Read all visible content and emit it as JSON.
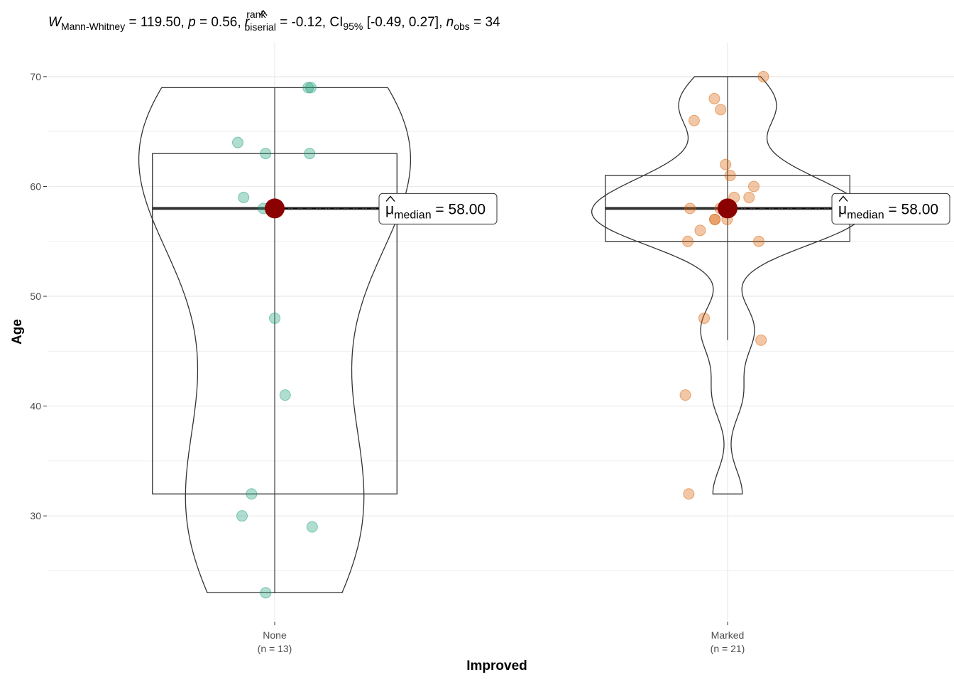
{
  "chart_data": {
    "type": "violin-box",
    "subtitle": {
      "stat_symbol": "W",
      "stat_sub": "Mann-Whitney",
      "stat_value": " = 119.50, ",
      "p_symbol": "p",
      "p_value": " = 0.56, ",
      "es_symbol": "r",
      "es_sup": "rank",
      "es_sub": "biserial",
      "es_value": " = -0.12, CI",
      "ci_sub": "95%",
      "ci_value": " [-0.49, 0.27], ",
      "n_symbol": "n",
      "n_sub": "obs",
      "n_value": " = 34"
    },
    "xlabel": "Improved",
    "ylabel": "Age",
    "ylim": [
      20.5,
      73.1
    ],
    "yticks": [
      "30",
      "40",
      "50",
      "60",
      "70"
    ],
    "grid": true,
    "groups": [
      {
        "name": "None",
        "n_label": "(n = 13)",
        "color": "#1b9e77",
        "points": [
          69,
          69,
          64,
          63,
          63,
          59,
          58,
          48,
          41,
          32,
          30,
          29,
          23
        ],
        "box": {
          "q1": 32,
          "median": 58,
          "q3": 63,
          "whisker_low": 23,
          "whisker_high": 69
        },
        "median_label": "58.00"
      },
      {
        "name": "Marked",
        "n_label": "(n = 21)",
        "color": "#d95f02",
        "points": [
          70,
          68,
          67,
          66,
          62,
          61,
          60,
          59,
          59,
          58,
          58,
          57,
          57,
          57,
          56,
          55,
          55,
          48,
          46,
          41,
          32
        ],
        "box": {
          "q1": 55,
          "median": 58,
          "q3": 61,
          "whisker_low": 46,
          "whisker_high": 70
        },
        "median_label": "58.00"
      }
    ],
    "median_label_prefix": "μ",
    "median_label_sub": "median",
    "median_point_color": "#8b0000"
  }
}
